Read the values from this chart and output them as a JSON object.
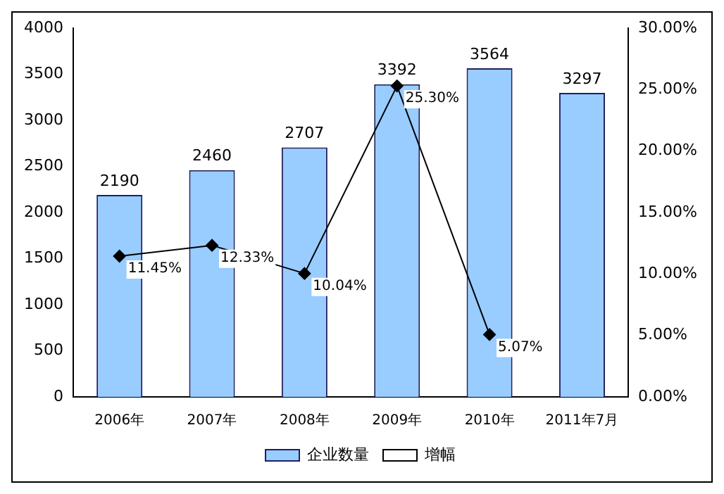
{
  "chart_data": {
    "type": "bar",
    "categories": [
      "2006年",
      "2007年",
      "2008年",
      "2009年",
      "2010年",
      "2011年7月"
    ],
    "series": [
      {
        "name": "企业数量",
        "color": "#99ccff",
        "values": [
          2190,
          2460,
          2707,
          3392,
          3564,
          3297
        ],
        "value_labels": [
          "2190",
          "2460",
          "2707",
          "3392",
          "3564",
          "3297"
        ]
      },
      {
        "name": "增幅",
        "type": "line",
        "axis": "y2",
        "color": "#000000",
        "values": [
          11.45,
          12.33,
          10.04,
          25.3,
          5.07,
          null
        ],
        "value_labels": [
          "11.45%",
          "12.33%",
          "10.04%",
          "25.30%",
          "5.07%",
          null
        ]
      }
    ],
    "ylim": [
      0,
      4000
    ],
    "yticks": [
      0,
      500,
      1000,
      1500,
      2000,
      2500,
      3000,
      3500,
      4000
    ],
    "y2lim": [
      0,
      30
    ],
    "y2ticks": [
      {
        "value": 0,
        "label": "0.00%"
      },
      {
        "value": 5,
        "label": "5.00%"
      },
      {
        "value": 10,
        "label": "10.00%"
      },
      {
        "value": 15,
        "label": "15.00%"
      },
      {
        "value": 20,
        "label": "20.00%"
      },
      {
        "value": 25,
        "label": "25.00%"
      },
      {
        "value": 30,
        "label": "30.00%"
      }
    ],
    "grid": false,
    "legend": "bottom",
    "marker": "diamond",
    "line_style": "solid"
  }
}
